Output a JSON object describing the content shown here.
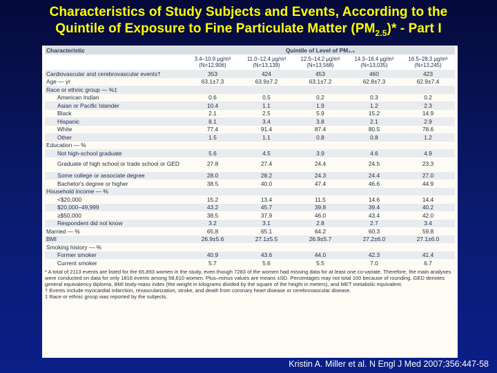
{
  "slide": {
    "title_line1": "Characteristics of Study Subjects and Events, According to the",
    "title_line2_pre": "Quintile of Exposure to Fine Particulate Matter (PM",
    "title_line2_sub": "2.5",
    "title_line2_post": ")* - Part I",
    "citation": "Kristin A. Miller et al. N Engl J Med 2007;356:447-58"
  },
  "table": {
    "characteristic_header": "Characteristic",
    "quintile_header": "Quintile of Level of PM₂.₅",
    "quintile_columns": [
      {
        "range": "3.4–10.9 μg/m³",
        "n": "(N=12,906)"
      },
      {
        "range": "11.0–12.4 μg/m³",
        "n": "(N=13,139)"
      },
      {
        "range": "12.5–14.2 μg/m³",
        "n": "(N=13,568)"
      },
      {
        "range": "14.3–16.4 μg/m³",
        "n": "(N=13,035)"
      },
      {
        "range": "16.5–28.3 μg/m³",
        "n": "(N=13,245)"
      }
    ],
    "rows": [
      {
        "label": "Cardiovascular and cerebrovascular events†",
        "values": [
          "353",
          "424",
          "453",
          "460",
          "423"
        ]
      },
      {
        "label": "Age — yr",
        "values": [
          "63.1±7.3",
          "63.9±7.2",
          "63.1±7.2",
          "62.8±7.3",
          "62.9±7.4"
        ]
      },
      {
        "label": "Race or ethnic group — %‡",
        "values": [
          "",
          "",
          "",
          "",
          ""
        ]
      },
      {
        "label": "American Indian",
        "values": [
          "0.6",
          "0.5",
          "0.2",
          "0.3",
          "0.2"
        ]
      },
      {
        "label": "Asian or Pacific Islander",
        "values": [
          "10.4",
          "1.1",
          "1.9",
          "1.2",
          "2.3"
        ]
      },
      {
        "label": "Black",
        "values": [
          "2.1",
          "2.5",
          "5.9",
          "15.2",
          "14.9"
        ]
      },
      {
        "label": "Hispanic",
        "values": [
          "8.1",
          "3.4",
          "3.8",
          "2.1",
          "2.9"
        ]
      },
      {
        "label": "White",
        "values": [
          "77.4",
          "91.4",
          "87.4",
          "80.5",
          "78.6"
        ]
      },
      {
        "label": "Other",
        "values": [
          "1.5",
          "1.1",
          "0.8",
          "0.8",
          "1.2"
        ]
      },
      {
        "label": "Education — %",
        "values": [
          "",
          "",
          "",
          "",
          ""
        ]
      },
      {
        "label": "Not high-school graduate",
        "values": [
          "5.6",
          "4.5",
          "3.9",
          "4.6",
          "4.9"
        ]
      },
      {
        "label": "Graduate of high school or trade school or GED",
        "values": [
          "27.8",
          "27.4",
          "24.4",
          "24.5",
          "23.3"
        ]
      },
      {
        "label": "Some college or associate degree",
        "values": [
          "28.0",
          "28.2",
          "24.3",
          "24.4",
          "27.0"
        ]
      },
      {
        "label": "Bachelor's degree or higher",
        "values": [
          "38.5",
          "40.0",
          "47.4",
          "46.6",
          "44.9"
        ]
      },
      {
        "label": "Household income — %",
        "values": [
          "",
          "",
          "",
          "",
          ""
        ]
      },
      {
        "label": "<$20,000",
        "values": [
          "15.2",
          "13.4",
          "11.5",
          "14.6",
          "14.4"
        ]
      },
      {
        "label": "$20,000–49,999",
        "values": [
          "43.2",
          "45.7",
          "39.8",
          "39.4",
          "40.2"
        ]
      },
      {
        "label": "≥$50,000",
        "values": [
          "38.5",
          "37.9",
          "46.0",
          "43.4",
          "42.0"
        ]
      },
      {
        "label": "Respondent did not know",
        "values": [
          "3.2",
          "3.1",
          "2.8",
          "2.7",
          "3.4"
        ]
      },
      {
        "label": "Married — %",
        "values": [
          "65.8",
          "65.1",
          "64.2",
          "60.3",
          "59.8"
        ]
      },
      {
        "label": "BMI",
        "values": [
          "26.9±5.6",
          "27.1±5.5",
          "26.9±5.7",
          "27.2±6.0",
          "27.1±6.0"
        ]
      },
      {
        "label": "Smoking history — %",
        "values": [
          "",
          "",
          "",
          "",
          ""
        ]
      },
      {
        "label": "Former smoker",
        "values": [
          "40.9",
          "43.6",
          "44.0",
          "42.3",
          "41.4"
        ]
      },
      {
        "label": "Current smoker",
        "values": [
          "5.7",
          "5.6",
          "5.5",
          "7.0",
          "6.7"
        ]
      }
    ],
    "footnotes": [
      "* A total of 2113 events are listed for the 65,893 women in the study, even though 7283 of the women had missing data for at least one co-variate. Therefore, the main analyses were conducted on data for only 1816 events among 58,610 women. Plus–minus values are means ±SD. Percentages may not total 100 because of rounding. GED denotes general equivalency diploma, BMI body-mass index (the weight in kilograms divided by the square of the height in meters), and MET metabolic equivalent.",
      "† Events include myocardial infarction, revascularization, stroke, and death from coronary heart disease or cerebrovascular disease.",
      "‡ Race or ethnic group was reported by the subjects."
    ]
  }
}
